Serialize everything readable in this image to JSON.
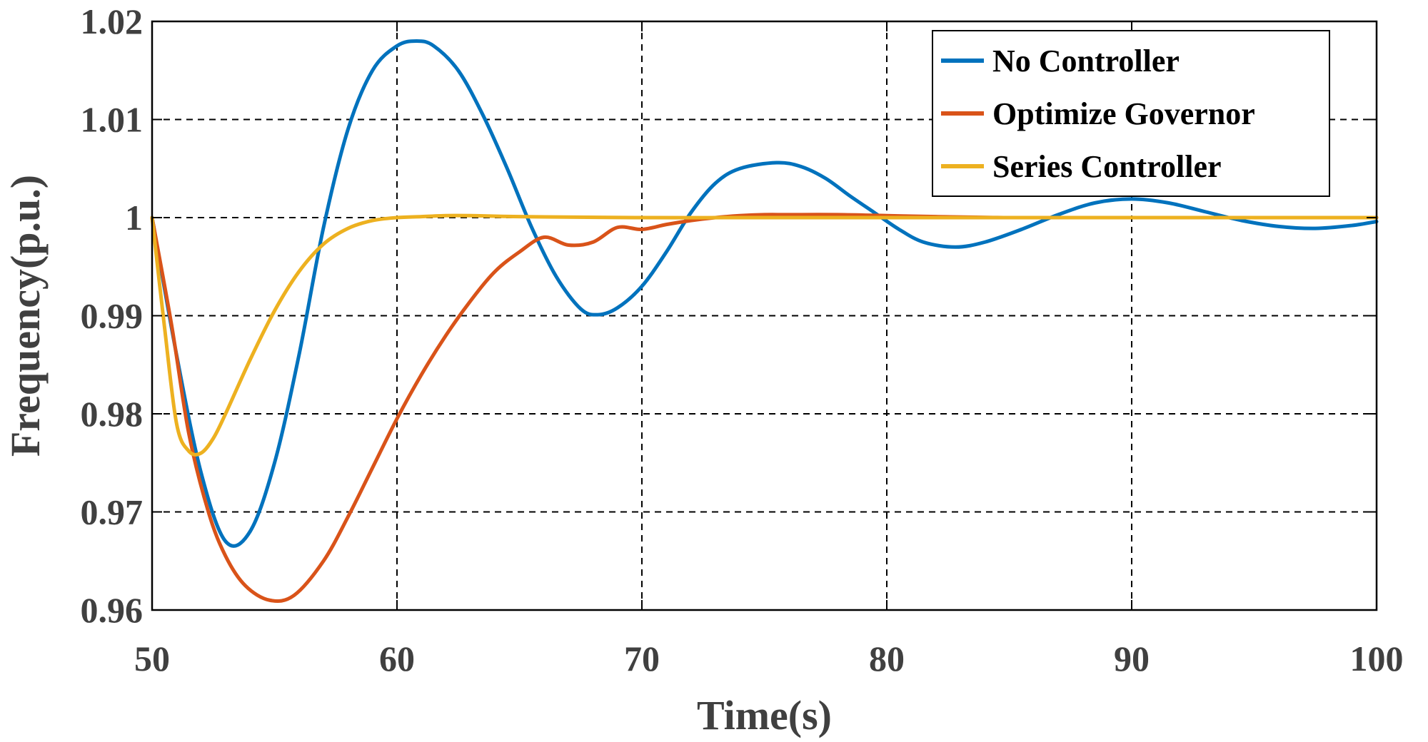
{
  "chart_data": {
    "type": "line",
    "title": "",
    "xlabel": "Time(s)",
    "ylabel": "Frequency(p.u.)",
    "xlim": [
      50,
      100
    ],
    "ylim": [
      0.96,
      1.02
    ],
    "xticks": [
      50,
      60,
      70,
      80,
      90,
      100
    ],
    "yticks": [
      0.96,
      0.97,
      0.98,
      0.99,
      1,
      1.01,
      1.02
    ],
    "xtick_labels": [
      "50",
      "60",
      "70",
      "80",
      "90",
      "100"
    ],
    "ytick_labels": [
      "0.96",
      "0.97",
      "0.98",
      "0.99",
      "1",
      "1.01",
      "1.02"
    ],
    "grid": true,
    "legend_position": "top-right",
    "series": [
      {
        "name": "No Controller",
        "color": "#0072BD",
        "x": [
          50,
          51,
          52,
          53,
          54,
          55,
          56,
          57,
          58,
          59,
          60,
          60.8,
          61.5,
          62.5,
          63.5,
          64.5,
          65.5,
          66.5,
          67.5,
          68.2,
          69,
          70,
          71,
          72,
          73,
          74,
          75.5,
          76.5,
          77.5,
          78.5,
          79.5,
          80.5,
          81.5,
          82.8,
          84,
          85.5,
          87,
          88.5,
          90,
          91.5,
          93,
          94.5,
          96,
          97.5,
          99,
          100
        ],
        "values": [
          1.0,
          0.986,
          0.974,
          0.967,
          0.968,
          0.975,
          0.986,
          0.999,
          1.009,
          1.015,
          1.0175,
          1.018,
          1.0175,
          1.015,
          1.0105,
          1.005,
          0.999,
          0.994,
          0.9907,
          0.9901,
          0.9908,
          0.993,
          0.9965,
          1.0005,
          1.0035,
          1.005,
          1.0056,
          1.0052,
          1.004,
          1.0022,
          1.0005,
          0.9988,
          0.9975,
          0.997,
          0.9975,
          0.9988,
          1.0003,
          1.0015,
          1.0019,
          1.0015,
          1.0006,
          0.9997,
          0.9991,
          0.9989,
          0.9992,
          0.9996
        ]
      },
      {
        "name": "Optimize Governor",
        "color": "#D95319",
        "x": [
          50,
          50.8,
          51.5,
          52.3,
          53,
          53.8,
          54.8,
          55.8,
          57,
          58,
          59,
          60,
          61,
          62,
          63,
          64,
          65,
          66,
          67,
          68,
          69,
          70,
          71,
          72,
          73,
          74,
          75,
          76,
          78,
          80,
          82,
          85,
          90,
          95,
          100
        ],
        "values": [
          1.0,
          0.989,
          0.978,
          0.97,
          0.9655,
          0.9625,
          0.961,
          0.9615,
          0.965,
          0.9695,
          0.9745,
          0.9795,
          0.984,
          0.988,
          0.9915,
          0.9945,
          0.9965,
          0.998,
          0.9972,
          0.9975,
          0.999,
          0.9988,
          0.9993,
          0.9997,
          1.0,
          1.0002,
          1.0003,
          1.0003,
          1.0003,
          1.0002,
          1.0001,
          1.0,
          1.0,
          1.0,
          1.0
        ]
      },
      {
        "name": "Series Controller",
        "color": "#EDB120",
        "x": [
          50,
          50.5,
          51,
          51.5,
          52,
          52.5,
          53,
          54,
          55,
          56,
          57,
          58,
          59,
          60,
          61,
          62,
          63,
          65,
          70,
          75,
          80,
          85,
          90,
          95,
          100
        ],
        "values": [
          1.0,
          0.989,
          0.979,
          0.9762,
          0.976,
          0.9775,
          0.98,
          0.9855,
          0.9905,
          0.9945,
          0.9973,
          0.9989,
          0.9997,
          1.0,
          1.0001,
          1.0002,
          1.0002,
          1.0001,
          1.0,
          1.0,
          1.0,
          1.0,
          1.0,
          1.0,
          1.0
        ]
      }
    ]
  }
}
